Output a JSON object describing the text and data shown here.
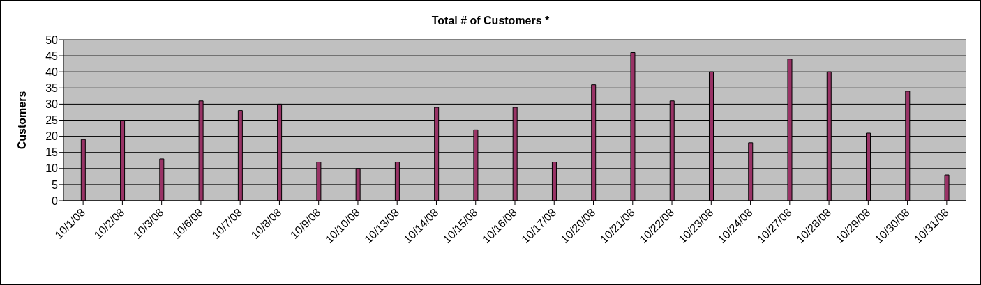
{
  "chart_data": {
    "type": "bar",
    "title": "Total # of Customers *",
    "ylabel": "Customers",
    "categories": [
      "10/1/08",
      "10/2/08",
      "10/3/08",
      "10/6/08",
      "10/7/08",
      "10/8/08",
      "10/9/08",
      "10/10/08",
      "10/13/08",
      "10/14/08",
      "10/15/08",
      "10/16/08",
      "10/17/08",
      "10/20/08",
      "10/21/08",
      "10/22/08",
      "10/23/08",
      "10/24/08",
      "10/27/08",
      "10/28/08",
      "10/29/08",
      "10/30/08",
      "10/31/08"
    ],
    "values": [
      19,
      25,
      13,
      31,
      28,
      30,
      12,
      10,
      12,
      29,
      22,
      29,
      12,
      36,
      46,
      31,
      40,
      18,
      44,
      40,
      21,
      34,
      8
    ],
    "color": "#993366",
    "ylim": [
      0,
      50
    ],
    "yticks": [
      0,
      5,
      10,
      15,
      20,
      25,
      30,
      35,
      40,
      45,
      50
    ],
    "grid": "y"
  }
}
